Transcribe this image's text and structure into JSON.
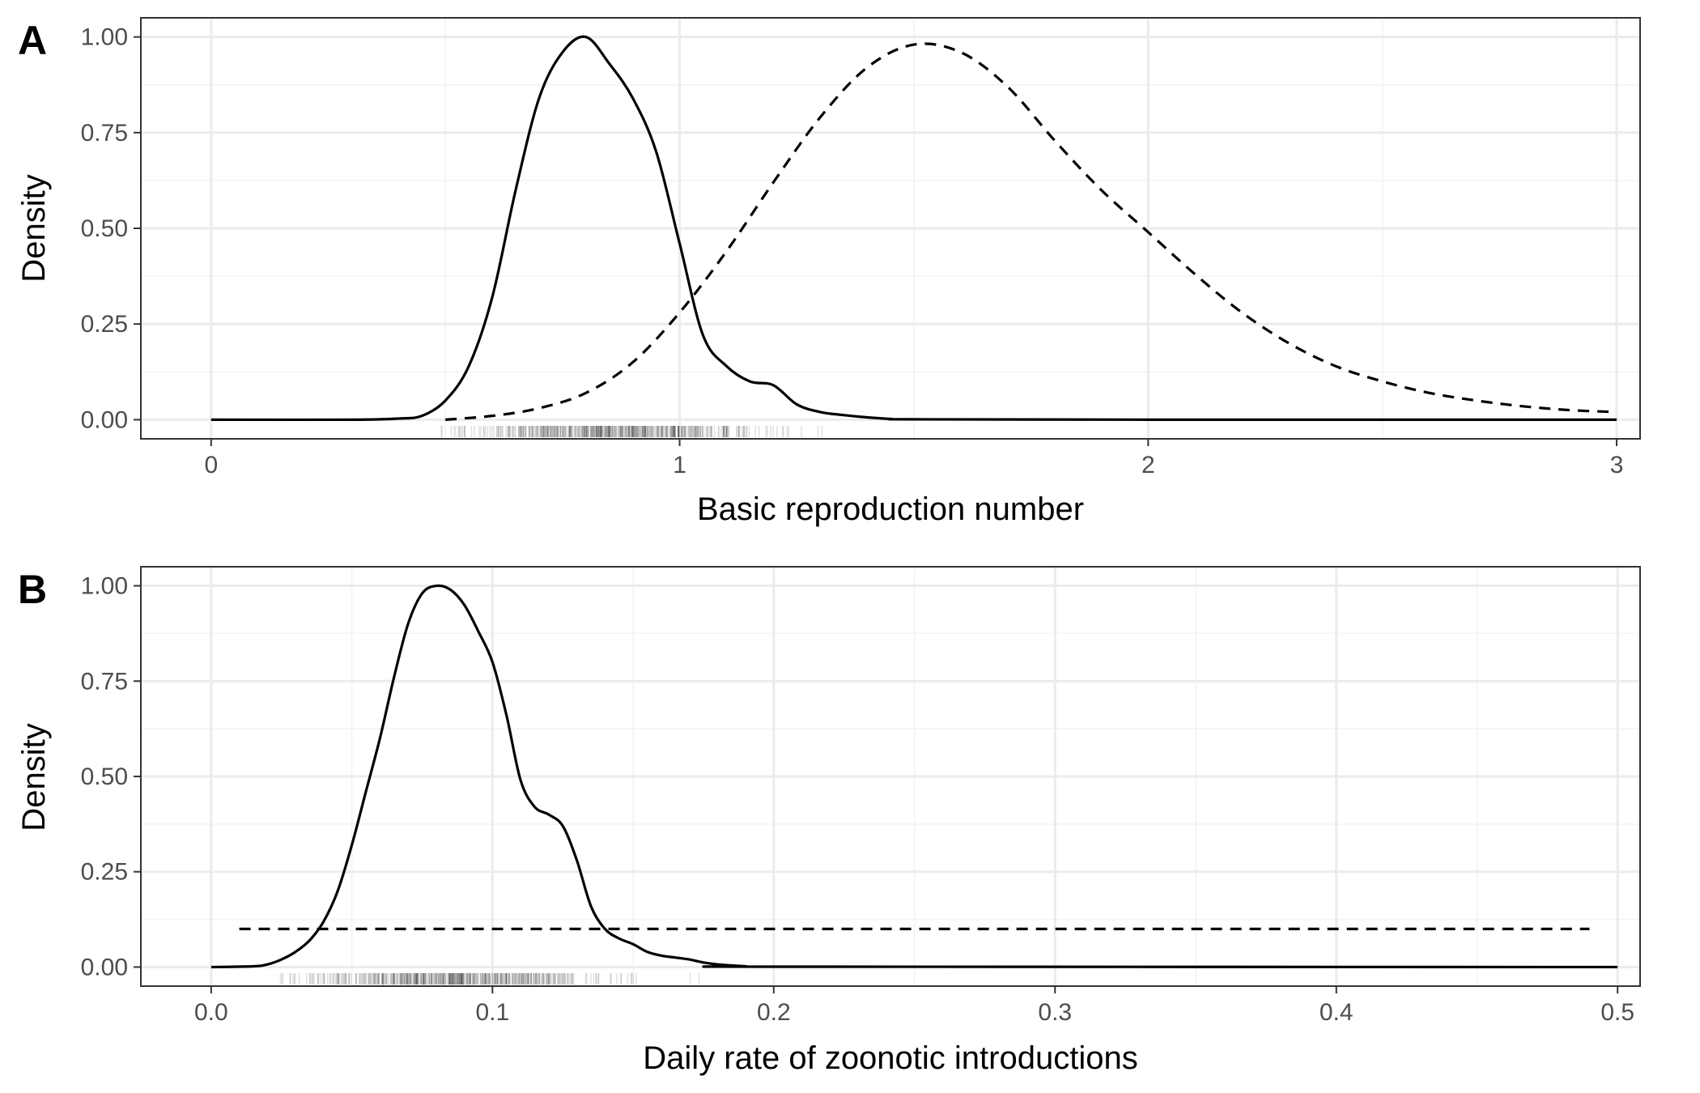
{
  "chart_data": [
    {
      "type": "line",
      "panel_label": "A",
      "xlabel": "Basic reproduction number",
      "ylabel": "Density",
      "xlim": [
        -0.15,
        3.05
      ],
      "ylim": [
        -0.05,
        1.05
      ],
      "x_ticks": [
        0,
        1,
        2,
        3
      ],
      "x_tick_labels": [
        "0",
        "1",
        "2",
        "3"
      ],
      "y_ticks": [
        0,
        0.25,
        0.5,
        0.75,
        1
      ],
      "y_tick_labels": [
        "0.00",
        "0.25",
        "0.50",
        "0.75",
        "1.00"
      ],
      "grid": true,
      "theme": "black-and-white",
      "series": [
        {
          "style": "solid",
          "x": [
            0,
            0.3,
            0.4,
            0.45,
            0.5,
            0.55,
            0.6,
            0.65,
            0.7,
            0.75,
            0.8,
            0.85,
            0.9,
            0.95,
            1.0,
            1.05,
            1.1,
            1.15,
            1.2,
            1.25,
            1.3,
            1.35,
            1.4,
            1.45,
            1.5,
            2.0,
            3.0
          ],
          "y": [
            0,
            0,
            0.003,
            0.01,
            0.05,
            0.14,
            0.32,
            0.6,
            0.84,
            0.96,
            1.0,
            0.93,
            0.84,
            0.7,
            0.46,
            0.22,
            0.14,
            0.1,
            0.09,
            0.04,
            0.02,
            0.012,
            0.006,
            0.002,
            0.001,
            0,
            0
          ]
        },
        {
          "style": "dashed",
          "x": [
            0.5,
            0.6,
            0.7,
            0.8,
            0.9,
            1.0,
            1.1,
            1.2,
            1.3,
            1.4,
            1.5,
            1.6,
            1.7,
            1.8,
            1.9,
            2.0,
            2.1,
            2.2,
            2.3,
            2.4,
            2.5,
            2.6,
            2.7,
            2.8,
            2.9,
            3.0
          ],
          "y": [
            0.0,
            0.01,
            0.03,
            0.07,
            0.15,
            0.28,
            0.44,
            0.62,
            0.79,
            0.92,
            0.98,
            0.96,
            0.87,
            0.73,
            0.6,
            0.49,
            0.38,
            0.28,
            0.2,
            0.14,
            0.1,
            0.07,
            0.05,
            0.035,
            0.025,
            0.02
          ]
        }
      ],
      "rug": {
        "x_range": [
          0.46,
          1.52
        ],
        "center": 0.86,
        "spread": 0.16
      }
    },
    {
      "type": "line",
      "panel_label": "B",
      "xlabel": "Daily rate of zoonotic introductions",
      "ylabel": "Density",
      "xlim": [
        -0.025,
        0.508
      ],
      "ylim": [
        -0.05,
        1.05
      ],
      "x_ticks": [
        0,
        0.1,
        0.2,
        0.3,
        0.4,
        0.5
      ],
      "x_tick_labels": [
        "0.0",
        "0.1",
        "0.2",
        "0.3",
        "0.4",
        "0.5"
      ],
      "y_ticks": [
        0,
        0.25,
        0.5,
        0.75,
        1
      ],
      "y_tick_labels": [
        "0.00",
        "0.25",
        "0.50",
        "0.75",
        "1.00"
      ],
      "grid": true,
      "theme": "black-and-white",
      "series": [
        {
          "style": "solid",
          "x": [
            0,
            0.015,
            0.02,
            0.025,
            0.03,
            0.035,
            0.04,
            0.045,
            0.05,
            0.055,
            0.06,
            0.065,
            0.07,
            0.075,
            0.08,
            0.085,
            0.09,
            0.095,
            0.1,
            0.105,
            0.11,
            0.115,
            0.12,
            0.125,
            0.13,
            0.135,
            0.14,
            0.145,
            0.15,
            0.155,
            0.16,
            0.165,
            0.17,
            0.175,
            0.18,
            0.19,
            0.2,
            0.5
          ],
          "y": [
            0,
            0.002,
            0.007,
            0.02,
            0.04,
            0.07,
            0.12,
            0.2,
            0.32,
            0.46,
            0.6,
            0.76,
            0.9,
            0.98,
            1.0,
            0.99,
            0.95,
            0.88,
            0.8,
            0.66,
            0.49,
            0.42,
            0.4,
            0.37,
            0.28,
            0.16,
            0.1,
            0.075,
            0.06,
            0.04,
            0.03,
            0.025,
            0.02,
            0.012,
            0.007,
            0.002,
            0.001,
            0
          ]
        },
        {
          "style": "dashed",
          "x": [
            0.01,
            0.49
          ],
          "y": [
            0.1,
            0.1
          ]
        }
      ],
      "rug": {
        "x_range": [
          0.024,
          0.19
        ],
        "center": 0.085,
        "spread": 0.027
      }
    }
  ]
}
